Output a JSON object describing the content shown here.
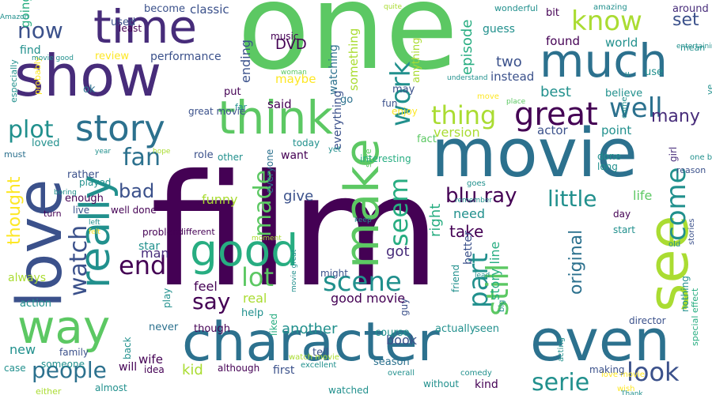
{
  "colors": {
    "background": "#ffffff",
    "dark_purple": "#440154",
    "indigo": "#472c7a",
    "blue_purple": "#3b518b",
    "blue": "#2c718e",
    "teal": "#21908d",
    "green_teal": "#27ad81",
    "green": "#5cc863",
    "lime": "#aadc32",
    "yellow": "#fde725"
  },
  "words": [
    "one",
    "film",
    "movie",
    "show",
    "time",
    "character",
    "love",
    "think",
    "much",
    "see",
    "way",
    "even",
    "good",
    "make",
    "story",
    "really",
    "great",
    "well",
    "know",
    "fan",
    "end",
    "thing",
    "watch",
    "work",
    "lot",
    "scene",
    "say",
    "look",
    "people",
    "plot",
    "little",
    "part",
    "still",
    "bad",
    "come",
    "serie",
    "blu ray",
    "seem",
    "made",
    "now",
    "set",
    "many",
    "take",
    "got",
    "DVD",
    "original",
    "story line",
    "thought",
    "give",
    "right",
    "funny",
    "good movie",
    "feel",
    "life",
    "man",
    "best",
    "actor",
    "point",
    "real",
    "need",
    "version",
    "two",
    "another",
    "kid",
    "new",
    "family",
    "wife",
    "book",
    "director",
    "special effect",
    "going",
    "used",
    "become",
    "classic",
    "music",
    "episode",
    "something",
    "guess",
    "bit",
    "around",
    "least",
    "ending",
    "maybe",
    "anything",
    "found",
    "world",
    "find",
    "review",
    "performance",
    "instead",
    "mean",
    "especially",
    "probably",
    "ok",
    "put",
    "far",
    "watching",
    "may",
    "fun",
    "believe",
    "use",
    "said",
    "go",
    "enjoy",
    "loved",
    "sure",
    "fact",
    "everyone",
    "everything",
    "want",
    "interesting",
    "done",
    "long",
    "girl",
    "reason",
    "must",
    "rather",
    "played",
    "role",
    "other",
    "always",
    "enough",
    "live",
    "turn",
    "problem",
    "different",
    "might",
    "better",
    "friend",
    "day",
    "start",
    "action",
    "star",
    "help",
    "guy",
    "never",
    "though",
    "seen",
    "actually",
    "course",
    "tell",
    "liked",
    "first",
    "season",
    "without",
    "kind",
    "although",
    "watched",
    "will",
    "idea",
    "almost",
    "someone",
    "either",
    "case",
    "back",
    "play",
    "nothing",
    "love movie",
    "acting",
    "watch movie",
    "excellent",
    "overall",
    "comedy",
    "making",
    "wish",
    "Thank",
    "entertaining",
    "amazing",
    "wonderful",
    "quite",
    "Amazon",
    "movie good",
    "woman",
    "place",
    "year",
    "hope",
    "boring",
    "today",
    "yet",
    "big",
    "keep",
    "left",
    "felt",
    "goes",
    "one best",
    "came",
    "old",
    "stories",
    "moment",
    "understand",
    "remember",
    "great movie",
    "ve",
    "u",
    "movie great",
    "lead",
    "move",
    "well done",
    "Ye",
    "enough"
  ]
}
